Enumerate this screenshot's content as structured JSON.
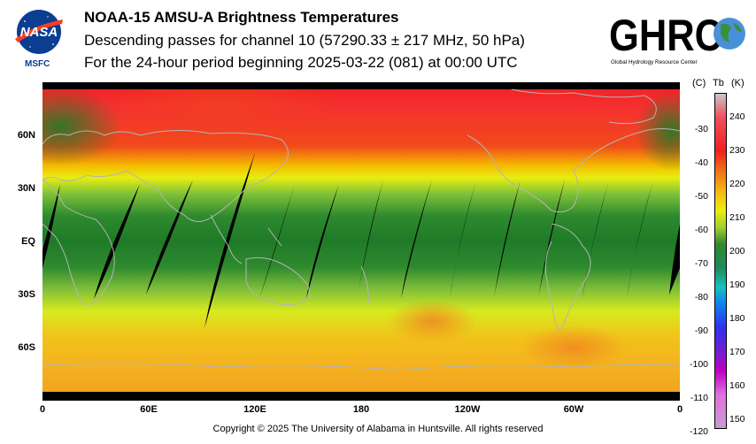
{
  "header": {
    "title": "NOAA-15 AMSU-A Brightness Temperatures",
    "subtitle": "Descending passes for channel 10 (57290.33 ± 217 MHz, 50 hPa)",
    "period": "For the 24-hour period beginning 2025-03-22 (081) at 00:00 UTC"
  },
  "logos": {
    "nasa_text": "NASA",
    "nasa_caption": "MSFC",
    "ghrc_text": "GHRC",
    "ghrc_caption": "Global Hydrology Resource Center",
    "nasa_color": "#0b3d91",
    "nasa_red": "#fc3d21"
  },
  "map": {
    "lat_labels": [
      "60N",
      "30N",
      "EQ",
      "30S",
      "60S"
    ],
    "lon_labels": [
      "0",
      "60E",
      "120E",
      "180",
      "120W",
      "60W",
      "0"
    ],
    "no_data_color": "#000000",
    "coastline_color": "#b4b4b4"
  },
  "colorbar": {
    "unit_c": "(C)",
    "unit_tb": "Tb",
    "unit_k": "(K)",
    "celsius_ticks": [
      "-30",
      "-40",
      "-50",
      "-60",
      "-70",
      "-80",
      "-90",
      "-100",
      "-110",
      "-120"
    ],
    "kelvin_ticks": [
      "240",
      "230",
      "220",
      "210",
      "200",
      "190",
      "180",
      "170",
      "160",
      "150"
    ],
    "kelvin_range": [
      149,
      249
    ]
  },
  "footer": {
    "copyright": "Copyright © 2025 The University of Alabama in Huntsville.  All rights reserved"
  }
}
